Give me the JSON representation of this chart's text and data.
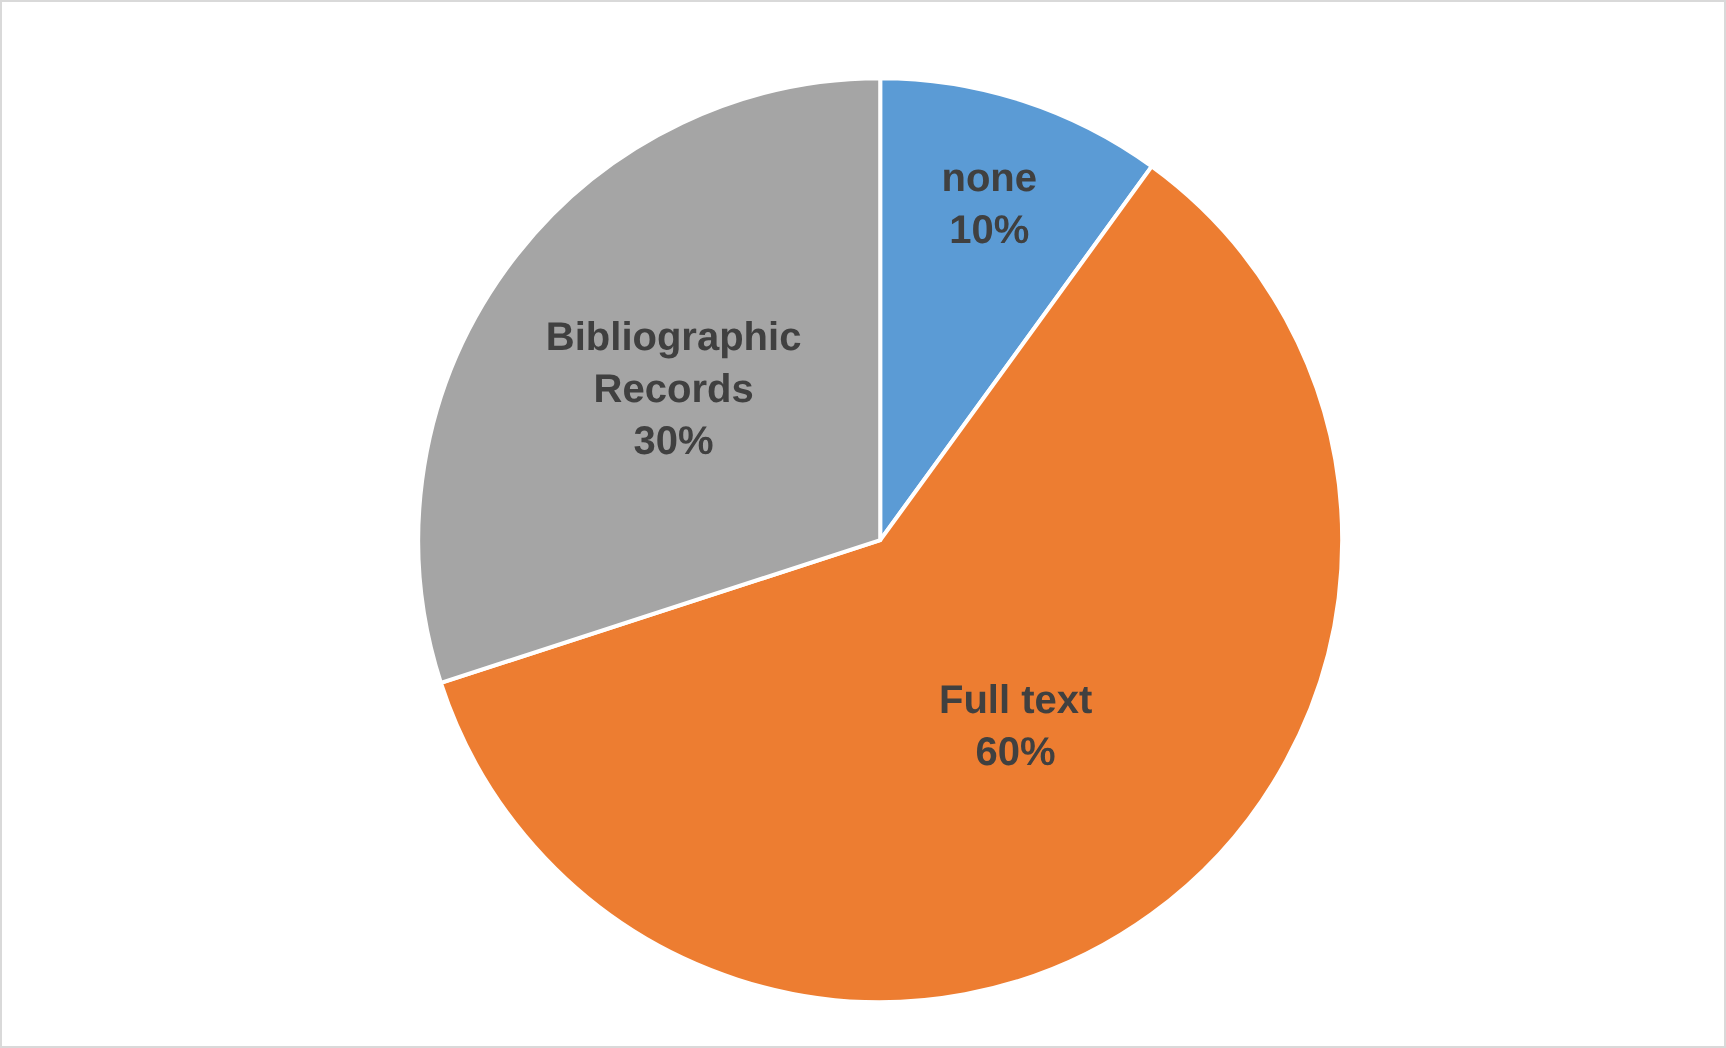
{
  "chart_data": {
    "type": "pie",
    "categories": [
      "none",
      "Full text",
      "Bibliographic Records"
    ],
    "values": [
      10,
      60,
      30
    ],
    "colors": [
      "#5b9bd5",
      "#ed7d31",
      "#a5a5a5"
    ],
    "value_labels": [
      "10%",
      "60%",
      "30%"
    ],
    "legend": false
  }
}
